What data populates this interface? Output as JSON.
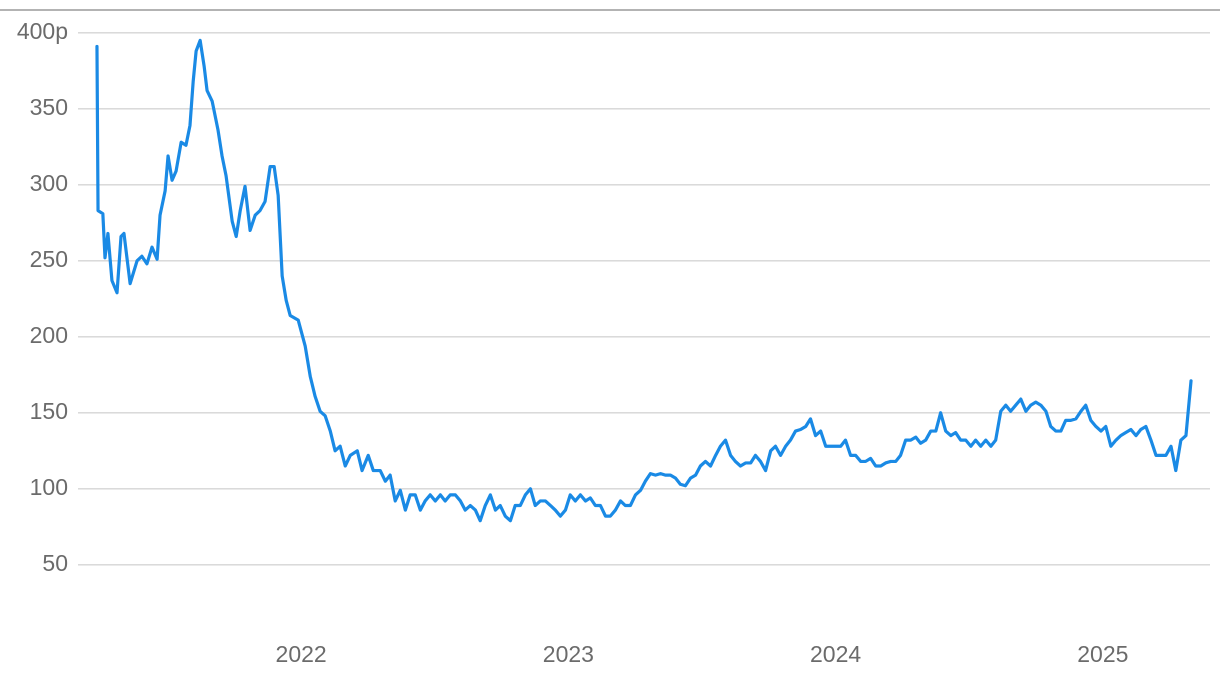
{
  "chart_data": {
    "type": "line",
    "x": [
      2021.236,
      2021.24,
      2021.258,
      2021.266,
      2021.277,
      2021.292,
      2021.311,
      2021.326,
      2021.337,
      2021.36,
      2021.386,
      2021.404,
      2021.423,
      2021.442,
      2021.461,
      2021.472,
      2021.491,
      2021.502,
      2021.517,
      2021.532,
      2021.551,
      2021.569,
      2021.584,
      2021.596,
      2021.607,
      2021.622,
      2021.637,
      2021.648,
      2021.667,
      2021.689,
      2021.704,
      2021.719,
      2021.742,
      2021.757,
      2021.772,
      2021.79,
      2021.809,
      2021.828,
      2021.846,
      2021.865,
      2021.884,
      2021.899,
      2021.914,
      2021.929,
      2021.944,
      2021.959,
      2021.989,
      2022.015,
      2022.034,
      2022.052,
      2022.071,
      2022.09,
      2022.109,
      2022.127,
      2022.146,
      2022.165,
      2022.184,
      2022.21,
      2022.228,
      2022.251,
      2022.27,
      2022.296,
      2022.315,
      2022.333,
      2022.352,
      2022.371,
      2022.39,
      2022.408,
      2022.427,
      2022.446,
      2022.464,
      2022.483,
      2022.502,
      2022.521,
      2022.539,
      2022.558,
      2022.577,
      2022.596,
      2022.614,
      2022.633,
      2022.652,
      2022.67,
      2022.689,
      2022.708,
      2022.727,
      2022.745,
      2022.764,
      2022.783,
      2022.801,
      2022.82,
      2022.839,
      2022.858,
      2022.876,
      2022.895,
      2022.914,
      2022.933,
      2022.951,
      2022.97,
      2022.989,
      2023.007,
      2023.026,
      2023.045,
      2023.064,
      2023.082,
      2023.101,
      2023.12,
      2023.139,
      2023.157,
      2023.176,
      2023.195,
      2023.213,
      2023.232,
      2023.251,
      2023.27,
      2023.288,
      2023.307,
      2023.326,
      2023.345,
      2023.363,
      2023.382,
      2023.401,
      2023.419,
      2023.438,
      2023.457,
      2023.476,
      2023.494,
      2023.513,
      2023.532,
      2023.551,
      2023.569,
      2023.588,
      2023.607,
      2023.625,
      2023.644,
      2023.663,
      2023.682,
      2023.7,
      2023.719,
      2023.738,
      2023.757,
      2023.775,
      2023.794,
      2023.813,
      2023.831,
      2023.85,
      2023.869,
      2023.888,
      2023.906,
      2023.925,
      2023.944,
      2023.963,
      2023.981,
      2024.0,
      2024.019,
      2024.037,
      2024.056,
      2024.075,
      2024.094,
      2024.112,
      2024.131,
      2024.15,
      2024.169,
      2024.187,
      2024.206,
      2024.225,
      2024.243,
      2024.262,
      2024.281,
      2024.3,
      2024.318,
      2024.337,
      2024.356,
      2024.375,
      2024.393,
      2024.412,
      2024.431,
      2024.449,
      2024.468,
      2024.487,
      2024.506,
      2024.524,
      2024.543,
      2024.562,
      2024.581,
      2024.599,
      2024.618,
      2024.637,
      2024.655,
      2024.674,
      2024.693,
      2024.712,
      2024.73,
      2024.749,
      2024.768,
      2024.787,
      2024.805,
      2024.824,
      2024.843,
      2024.861,
      2024.88,
      2024.899,
      2024.918,
      2024.936,
      2024.955,
      2024.974,
      2024.993,
      2025.011,
      2025.03,
      2025.049,
      2025.067,
      2025.086,
      2025.105,
      2025.124,
      2025.142,
      2025.161,
      2025.18,
      2025.199,
      2025.217,
      2025.236,
      2025.255,
      2025.273,
      2025.292,
      2025.311,
      2025.33
    ],
    "series": [
      {
        "color": "#1a8ae5",
        "values": [
          391,
          283,
          281,
          252,
          268,
          237,
          229,
          266,
          268,
          235,
          250,
          253,
          248,
          259,
          251,
          280,
          296,
          319,
          303,
          309,
          328,
          326,
          339,
          368,
          388,
          395,
          378,
          362,
          355,
          336,
          319,
          306,
          276,
          266,
          283,
          299,
          270,
          280,
          283,
          289,
          312,
          312,
          293,
          240,
          224,
          214,
          211,
          194,
          174,
          161,
          151,
          148,
          138,
          125,
          128,
          115,
          122,
          125,
          112,
          122,
          112,
          112,
          105,
          109,
          92,
          99,
          86,
          96,
          96,
          86,
          92,
          96,
          92,
          96,
          92,
          96,
          96,
          92,
          86,
          89,
          86,
          79,
          89,
          96,
          86,
          89,
          82,
          79,
          89,
          89,
          96,
          100,
          89,
          92,
          92,
          89,
          86,
          82,
          86,
          96,
          92,
          96,
          92,
          94,
          89,
          89,
          82,
          82,
          86,
          92,
          89,
          89,
          96,
          99,
          105,
          110,
          109,
          110,
          109,
          109,
          107,
          103,
          102,
          107,
          109,
          115,
          118,
          115,
          122,
          128,
          132,
          122,
          118,
          115,
          117,
          117,
          122,
          118,
          112,
          125,
          128,
          122,
          128,
          132,
          138,
          139,
          141,
          146,
          135,
          138,
          128,
          128,
          128,
          128,
          132,
          122,
          122,
          118,
          118,
          120,
          115,
          115,
          117,
          118,
          118,
          122,
          132,
          132,
          134,
          130,
          132,
          138,
          138,
          150,
          138,
          135,
          137,
          132,
          132,
          128,
          132,
          128,
          132,
          128,
          132,
          151,
          155,
          151,
          155,
          159,
          151,
          155,
          157,
          155,
          151,
          141,
          138,
          138,
          145,
          145,
          146,
          151,
          155,
          145,
          141,
          138,
          141,
          128,
          132,
          135,
          137,
          139,
          135,
          139,
          141,
          132,
          122,
          122,
          122,
          128,
          112,
          132,
          135,
          171
        ]
      }
    ],
    "xlim": [
      2021.165,
      2025.401
    ],
    "xticks": [
      2022,
      2023,
      2024,
      2025
    ],
    "ylim": [
      15,
      415
    ],
    "yticks": [
      50,
      100,
      150,
      200,
      250,
      300,
      350,
      {
        "value": 400,
        "label": "400p"
      }
    ],
    "grid": true
  }
}
